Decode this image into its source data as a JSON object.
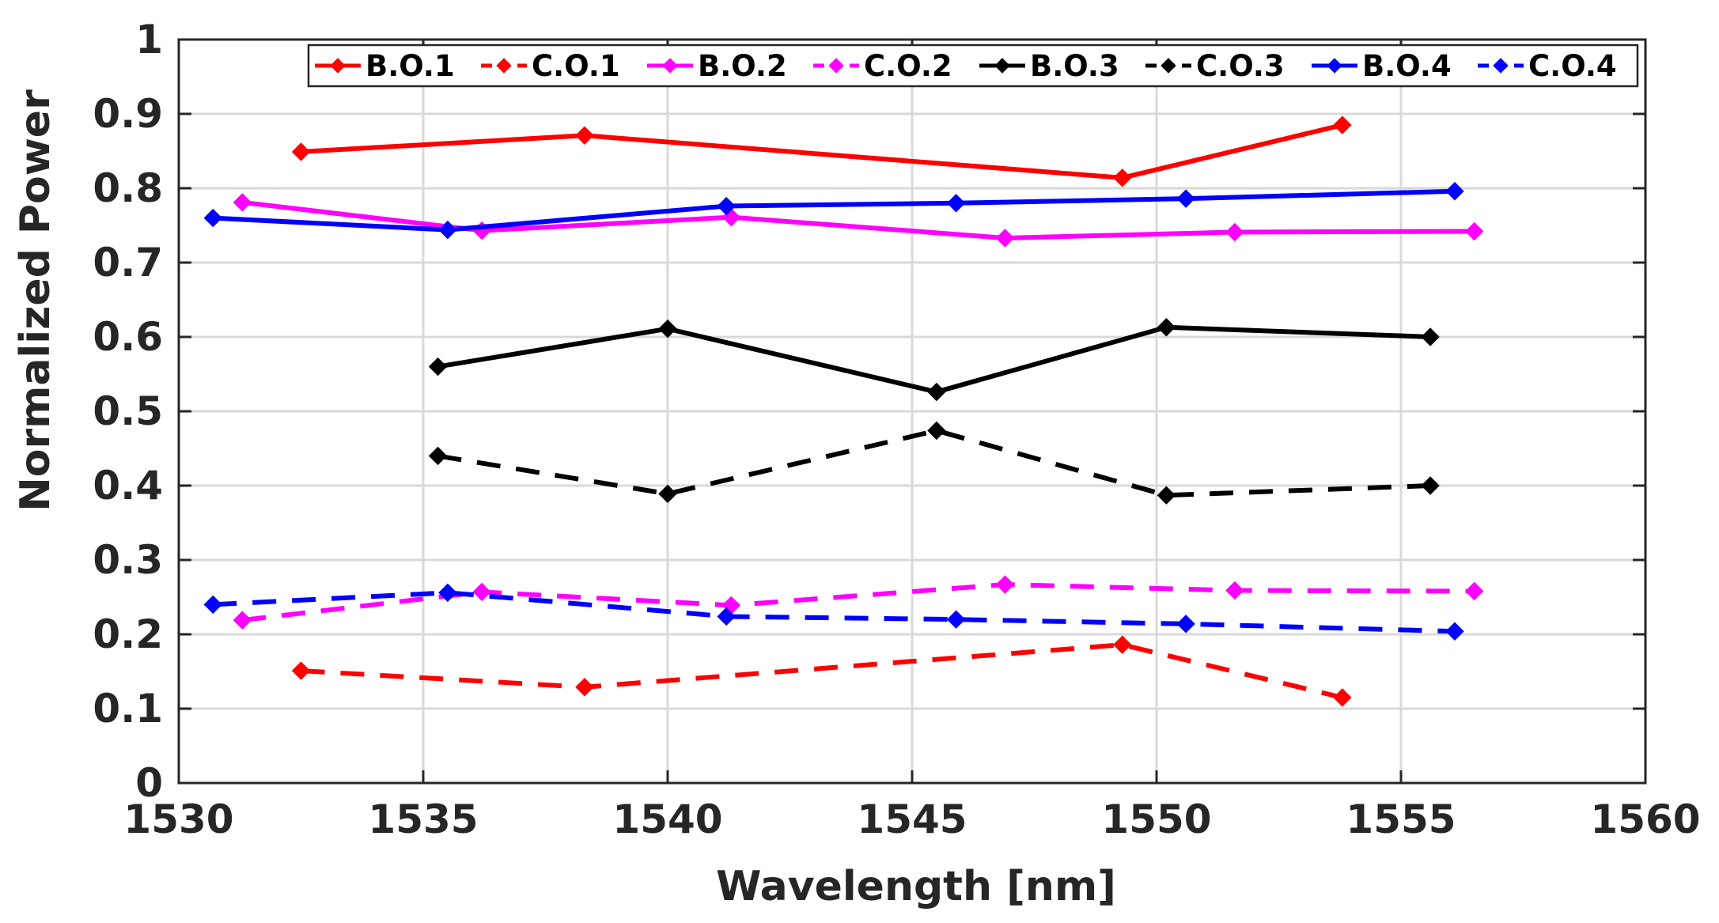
{
  "chart_data": {
    "type": "line",
    "xlabel": "Wavelength [nm]",
    "ylabel": "Normalized Power",
    "xlim": [
      1530,
      1560
    ],
    "ylim": [
      0,
      1
    ],
    "xticks": [
      "1530",
      "1535",
      "1540",
      "1545",
      "1550",
      "1555",
      "1560"
    ],
    "yticks": [
      "0",
      "0.1",
      "0.2",
      "0.3",
      "0.4",
      "0.5",
      "0.6",
      "0.7",
      "0.8",
      "0.9",
      "1"
    ],
    "grid": true,
    "legend_position": "top",
    "series": [
      {
        "name": "B.O.1",
        "color": "#ff0000",
        "dashed": false,
        "marker": "diamond",
        "x": [
          1532.5,
          1538.3,
          1549.3,
          1553.8
        ],
        "y": [
          0.849,
          0.871,
          0.814,
          0.885
        ]
      },
      {
        "name": "C.O.1",
        "color": "#ff0000",
        "dashed": true,
        "marker": "diamond",
        "x": [
          1532.5,
          1538.3,
          1549.3,
          1553.8
        ],
        "y": [
          0.151,
          0.129,
          0.186,
          0.115
        ]
      },
      {
        "name": "B.O.2",
        "color": "#ff00ff",
        "dashed": false,
        "marker": "diamond",
        "x": [
          1531.3,
          1536.2,
          1541.3,
          1546.9,
          1551.6,
          1556.5
        ],
        "y": [
          0.781,
          0.743,
          0.761,
          0.733,
          0.741,
          0.742
        ]
      },
      {
        "name": "C.O.2",
        "color": "#ff00ff",
        "dashed": true,
        "marker": "diamond",
        "x": [
          1531.3,
          1536.2,
          1541.3,
          1546.9,
          1551.6,
          1556.5
        ],
        "y": [
          0.219,
          0.257,
          0.239,
          0.267,
          0.259,
          0.258
        ]
      },
      {
        "name": "B.O.3",
        "color": "#000000",
        "dashed": false,
        "marker": "diamond",
        "x": [
          1535.3,
          1540.0,
          1545.5,
          1550.2,
          1555.6
        ],
        "y": [
          0.56,
          0.611,
          0.526,
          0.613,
          0.6
        ]
      },
      {
        "name": "C.O.3",
        "color": "#000000",
        "dashed": true,
        "marker": "diamond",
        "x": [
          1535.3,
          1540.0,
          1545.5,
          1550.2,
          1555.6
        ],
        "y": [
          0.44,
          0.389,
          0.474,
          0.387,
          0.4
        ]
      },
      {
        "name": "B.O.4",
        "color": "#0000ff",
        "dashed": false,
        "marker": "diamond",
        "x": [
          1530.7,
          1535.5,
          1541.2,
          1545.9,
          1550.6,
          1556.1
        ],
        "y": [
          0.76,
          0.744,
          0.776,
          0.78,
          0.786,
          0.796
        ]
      },
      {
        "name": "C.O.4",
        "color": "#0000ff",
        "dashed": true,
        "marker": "diamond",
        "x": [
          1530.7,
          1535.5,
          1541.2,
          1545.9,
          1550.6,
          1556.1
        ],
        "y": [
          0.24,
          0.256,
          0.224,
          0.22,
          0.214,
          0.204
        ]
      }
    ]
  }
}
